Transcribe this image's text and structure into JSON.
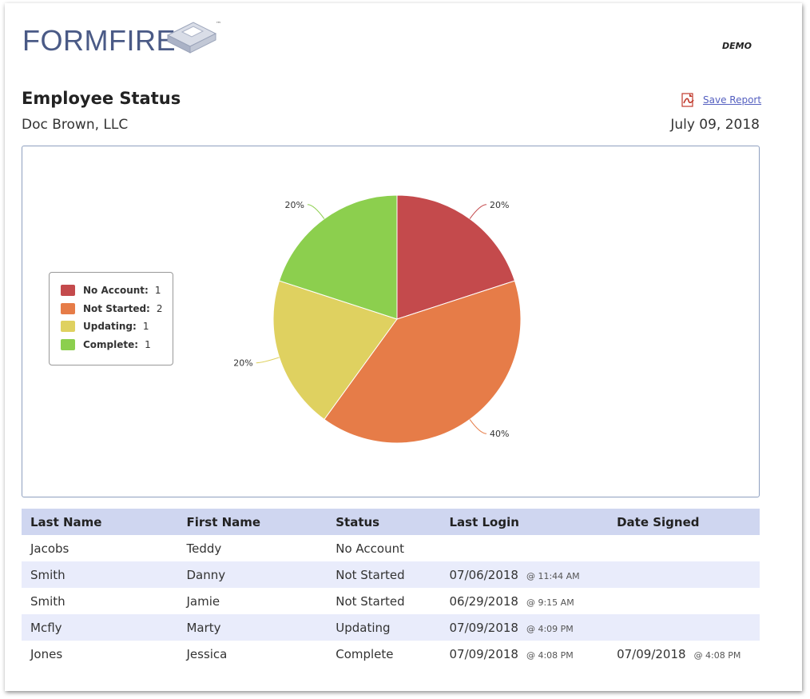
{
  "brand": {
    "name": "FORMFIRE",
    "tm": "™",
    "demo": "DEMO"
  },
  "report": {
    "title": "Employee Status",
    "company": "Doc Brown, LLC",
    "date": "July 09, 2018",
    "save_label": "Save Report"
  },
  "chart_data": {
    "type": "pie",
    "slices": [
      {
        "name": "No Account",
        "value": 1,
        "percent": "20%",
        "color": "#c44a4c"
      },
      {
        "name": "Not Started",
        "value": 2,
        "percent": "40%",
        "color": "#e67c48"
      },
      {
        "name": "Updating",
        "value": 1,
        "percent": "20%",
        "color": "#dfd160"
      },
      {
        "name": "Complete",
        "value": 1,
        "percent": "20%",
        "color": "#8ccf4e"
      }
    ],
    "legend": "left"
  },
  "table": {
    "headers": [
      "Last Name",
      "First Name",
      "Status",
      "Last Login",
      "Date Signed"
    ],
    "rows": [
      {
        "last": "Jacobs",
        "first": "Teddy",
        "status": "No Account",
        "login_date": "",
        "login_time": "",
        "signed_date": "",
        "signed_time": ""
      },
      {
        "last": "Smith",
        "first": "Danny",
        "status": "Not Started",
        "login_date": "07/06/2018",
        "login_time": "@ 11:44 AM",
        "signed_date": "",
        "signed_time": ""
      },
      {
        "last": "Smith",
        "first": "Jamie",
        "status": "Not Started",
        "login_date": "06/29/2018",
        "login_time": "@ 9:15 AM",
        "signed_date": "",
        "signed_time": ""
      },
      {
        "last": "Mcfly",
        "first": "Marty",
        "status": "Updating",
        "login_date": "07/09/2018",
        "login_time": "@ 4:09 PM",
        "signed_date": "",
        "signed_time": ""
      },
      {
        "last": "Jones",
        "first": "Jessica",
        "status": "Complete",
        "login_date": "07/09/2018",
        "login_time": "@ 4:08 PM",
        "signed_date": "07/09/2018",
        "signed_time": "@ 4:08 PM"
      }
    ]
  }
}
